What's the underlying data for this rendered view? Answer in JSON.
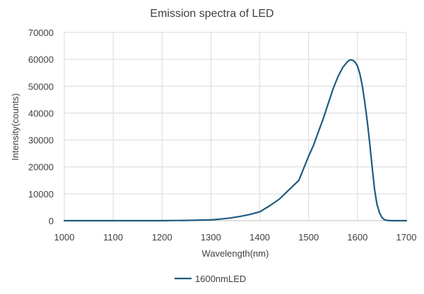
{
  "chart_data": {
    "type": "line",
    "title": "Emission spectra of LED",
    "xlabel": "Wavelength(nm)",
    "ylabel": "Intensity(counts)",
    "xlim": [
      1000,
      1700
    ],
    "ylim": [
      0,
      70000
    ],
    "x_ticks": [
      1000,
      1100,
      1200,
      1300,
      1400,
      1500,
      1600,
      1700
    ],
    "y_ticks": [
      0,
      10000,
      20000,
      30000,
      40000,
      50000,
      60000,
      70000
    ],
    "grid": true,
    "legend_position": "bottom",
    "series": [
      {
        "name": "1600nmLED",
        "color": "#1f5b80",
        "x": [
          1000,
          1100,
          1200,
          1250,
          1300,
          1320,
          1340,
          1360,
          1380,
          1400,
          1420,
          1440,
          1460,
          1480,
          1490,
          1500,
          1510,
          1520,
          1530,
          1540,
          1550,
          1560,
          1570,
          1580,
          1585,
          1590,
          1595,
          1600,
          1605,
          1610,
          1615,
          1620,
          1625,
          1630,
          1635,
          1640,
          1645,
          1650,
          1655,
          1660,
          1670,
          1680,
          1690,
          1700
        ],
        "y": [
          0,
          0,
          0,
          100,
          300,
          600,
          1000,
          1600,
          2300,
          3300,
          5500,
          8000,
          11500,
          15000,
          19500,
          24000,
          28000,
          33000,
          38000,
          43500,
          49000,
          53500,
          57000,
          59200,
          59800,
          59700,
          59000,
          57500,
          54500,
          50000,
          44000,
          37000,
          29000,
          20000,
          11500,
          6000,
          3000,
          1200,
          400,
          100,
          0,
          0,
          0,
          0
        ]
      }
    ]
  }
}
